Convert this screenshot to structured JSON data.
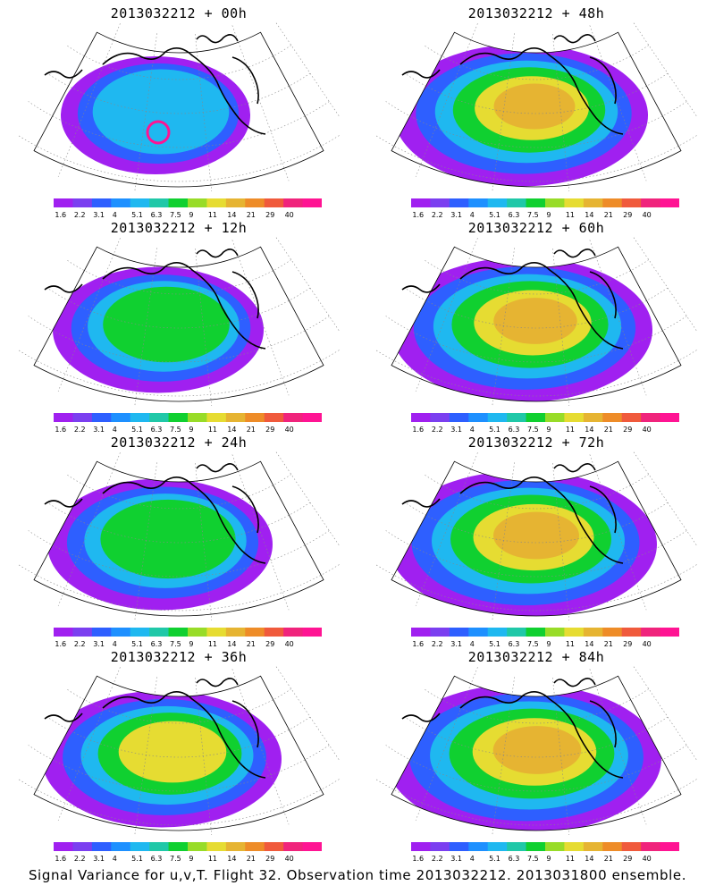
{
  "footer": "Signal Variance for u,v,T. Flight 32. Observation time 2013032212. 2013031800 ensemble.",
  "colorbar": {
    "labels": [
      "1.6",
      "2.2",
      "3.1",
      "4",
      "5.1",
      "6.3",
      "7.5",
      "9",
      "11",
      "14",
      "21",
      "29",
      "40"
    ],
    "colors": [
      "#a020f0",
      "#7b3ff0",
      "#2e5fff",
      "#1e90ff",
      "#1fb8f0",
      "#20c8a8",
      "#10d030",
      "#98dc28",
      "#e6dc32",
      "#e6b432",
      "#ee8c28",
      "#f05a3c",
      "#f0247c",
      "#ff1493"
    ]
  },
  "panels": [
    {
      "title": "2013032212 + 00h",
      "level": 0.2
    },
    {
      "title": "2013032212 + 48h",
      "level": 0.65
    },
    {
      "title": "2013032212 + 12h",
      "level": 0.35
    },
    {
      "title": "2013032212 + 60h",
      "level": 0.7
    },
    {
      "title": "2013032212 + 24h",
      "level": 0.45
    },
    {
      "title": "2013032212 + 72h",
      "level": 0.75
    },
    {
      "title": "2013032212 + 36h",
      "level": 0.55
    },
    {
      "title": "2013032212 + 84h",
      "level": 0.8
    }
  ]
}
